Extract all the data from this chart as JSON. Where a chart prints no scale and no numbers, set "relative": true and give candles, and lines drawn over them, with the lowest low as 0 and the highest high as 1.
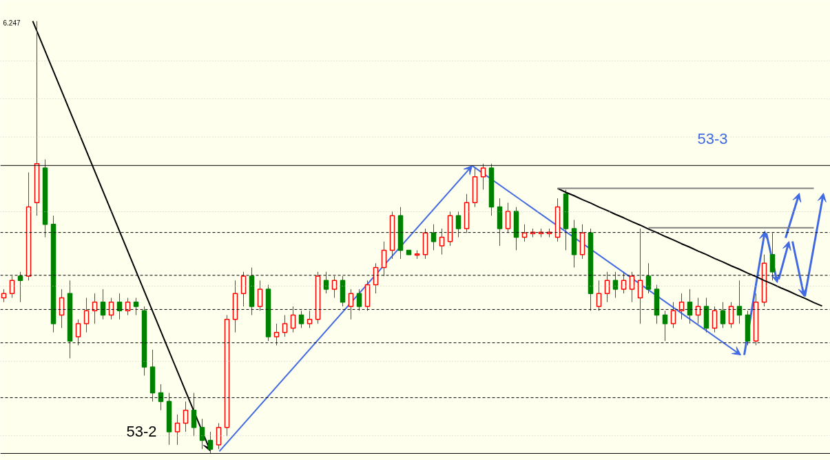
{
  "chart_data": {
    "type": "candlestick",
    "relative": true,
    "categories": [
      null,
      null,
      null,
      null,
      null,
      null,
      null,
      null,
      null,
      null,
      null,
      null,
      null,
      null,
      null,
      null,
      null,
      null,
      null,
      null,
      null,
      null,
      null,
      null,
      null,
      null,
      null,
      null,
      null,
      null,
      null,
      null,
      null,
      null,
      null,
      null,
      null,
      null,
      null,
      null,
      null,
      null,
      null,
      null,
      null,
      null,
      null,
      null,
      null,
      null,
      null,
      null,
      null,
      null,
      null,
      null,
      null,
      null,
      null,
      null,
      null,
      null,
      null,
      null,
      null,
      null,
      null,
      null,
      null,
      null,
      null,
      null,
      null,
      null,
      null,
      null,
      null,
      null,
      null,
      null,
      null,
      null,
      null,
      null,
      null,
      null,
      null,
      null,
      null,
      null,
      null,
      null,
      null,
      null,
      null,
      null,
      null,
      null,
      null,
      null
    ],
    "ohlc": [
      [
        0.36,
        0.38,
        0.35,
        0.37
      ],
      [
        0.37,
        0.41,
        0.36,
        0.4
      ],
      [
        0.41,
        0.42,
        0.35,
        0.4
      ],
      [
        0.41,
        0.65,
        0.4,
        0.57
      ],
      [
        0.58,
        1.0,
        0.55,
        0.67
      ],
      [
        0.66,
        0.68,
        0.5,
        0.53
      ],
      [
        0.53,
        0.55,
        0.28,
        0.3
      ],
      [
        0.32,
        0.38,
        0.29,
        0.36
      ],
      [
        0.37,
        0.4,
        0.22,
        0.26
      ],
      [
        0.27,
        0.31,
        0.25,
        0.3
      ],
      [
        0.3,
        0.36,
        0.28,
        0.33
      ],
      [
        0.33,
        0.37,
        0.3,
        0.35
      ],
      [
        0.35,
        0.38,
        0.31,
        0.32
      ],
      [
        0.32,
        0.36,
        0.31,
        0.35
      ],
      [
        0.35,
        0.37,
        0.31,
        0.33
      ],
      [
        0.33,
        0.36,
        0.32,
        0.35
      ],
      [
        0.35,
        0.36,
        0.32,
        0.34
      ],
      [
        0.33,
        0.34,
        0.18,
        0.2
      ],
      [
        0.2,
        0.24,
        0.12,
        0.14
      ],
      [
        0.14,
        0.16,
        0.1,
        0.12
      ],
      [
        0.12,
        0.14,
        0.02,
        0.05
      ],
      [
        0.05,
        0.09,
        0.02,
        0.07
      ],
      [
        0.07,
        0.12,
        0.05,
        0.1
      ],
      [
        0.1,
        0.14,
        0.04,
        0.06
      ],
      [
        0.06,
        0.08,
        0.01,
        0.03
      ],
      [
        0.03,
        0.05,
        0.0,
        0.01
      ],
      [
        0.02,
        0.07,
        0.01,
        0.06
      ],
      [
        0.06,
        0.32,
        0.04,
        0.31
      ],
      [
        0.31,
        0.4,
        0.28,
        0.37
      ],
      [
        0.37,
        0.42,
        0.34,
        0.41
      ],
      [
        0.41,
        0.43,
        0.32,
        0.34
      ],
      [
        0.34,
        0.4,
        0.33,
        0.38
      ],
      [
        0.38,
        0.39,
        0.26,
        0.27
      ],
      [
        0.27,
        0.3,
        0.25,
        0.28
      ],
      [
        0.28,
        0.32,
        0.27,
        0.3
      ],
      [
        0.29,
        0.34,
        0.28,
        0.32
      ],
      [
        0.32,
        0.33,
        0.29,
        0.3
      ],
      [
        0.3,
        0.33,
        0.29,
        0.31
      ],
      [
        0.31,
        0.42,
        0.3,
        0.41
      ],
      [
        0.4,
        0.42,
        0.37,
        0.38
      ],
      [
        0.38,
        0.41,
        0.36,
        0.4
      ],
      [
        0.4,
        0.41,
        0.34,
        0.35
      ],
      [
        0.34,
        0.38,
        0.31,
        0.37
      ],
      [
        0.37,
        0.38,
        0.33,
        0.34
      ],
      [
        0.34,
        0.4,
        0.33,
        0.39
      ],
      [
        0.39,
        0.44,
        0.37,
        0.43
      ],
      [
        0.43,
        0.49,
        0.41,
        0.47
      ],
      [
        0.47,
        0.56,
        0.45,
        0.55
      ],
      [
        0.55,
        0.57,
        0.45,
        0.47
      ],
      [
        0.47,
        0.47,
        0.46,
        0.46
      ],
      [
        0.46,
        0.47,
        0.45,
        0.46
      ],
      [
        0.46,
        0.52,
        0.45,
        0.51
      ],
      [
        0.51,
        0.53,
        0.47,
        0.49
      ],
      [
        0.48,
        0.52,
        0.46,
        0.5
      ],
      [
        0.49,
        0.56,
        0.48,
        0.55
      ],
      [
        0.55,
        0.56,
        0.5,
        0.52
      ],
      [
        0.52,
        0.6,
        0.51,
        0.58
      ],
      [
        0.58,
        0.66,
        0.57,
        0.64
      ],
      [
        0.64,
        0.67,
        0.61,
        0.66
      ],
      [
        0.66,
        0.67,
        0.55,
        0.57
      ],
      [
        0.57,
        0.59,
        0.48,
        0.52
      ],
      [
        0.52,
        0.58,
        0.51,
        0.56
      ],
      [
        0.56,
        0.57,
        0.47,
        0.5
      ],
      [
        0.5,
        0.53,
        0.49,
        0.51
      ],
      [
        0.51,
        0.52,
        0.5,
        0.51
      ],
      [
        0.51,
        0.52,
        0.5,
        0.51
      ],
      [
        0.51,
        0.52,
        0.5,
        0.51
      ],
      [
        0.5,
        0.59,
        0.49,
        0.57
      ],
      [
        0.6,
        0.61,
        0.47,
        0.52
      ],
      [
        0.52,
        0.54,
        0.43,
        0.46
      ],
      [
        0.46,
        0.53,
        0.45,
        0.51
      ],
      [
        0.51,
        0.52,
        0.33,
        0.37
      ],
      [
        0.34,
        0.4,
        0.33,
        0.37
      ],
      [
        0.37,
        0.42,
        0.35,
        0.4
      ],
      [
        0.4,
        0.42,
        0.36,
        0.38
      ],
      [
        0.38,
        0.42,
        0.37,
        0.4
      ],
      [
        0.38,
        0.42,
        0.35,
        0.41
      ],
      [
        0.36,
        0.52,
        0.3,
        0.4
      ],
      [
        0.41,
        0.44,
        0.37,
        0.38
      ],
      [
        0.38,
        0.39,
        0.3,
        0.32
      ],
      [
        0.32,
        0.33,
        0.26,
        0.3
      ],
      [
        0.3,
        0.35,
        0.29,
        0.33
      ],
      [
        0.33,
        0.37,
        0.31,
        0.35
      ],
      [
        0.35,
        0.38,
        0.3,
        0.32
      ],
      [
        0.32,
        0.36,
        0.3,
        0.34
      ],
      [
        0.34,
        0.36,
        0.28,
        0.29
      ],
      [
        0.29,
        0.34,
        0.28,
        0.33
      ],
      [
        0.33,
        0.35,
        0.29,
        0.3
      ],
      [
        0.3,
        0.35,
        0.29,
        0.34
      ],
      [
        0.34,
        0.4,
        0.3,
        0.32
      ],
      [
        0.32,
        0.33,
        0.25,
        0.26
      ],
      [
        0.26,
        0.37,
        0.25,
        0.35
      ],
      [
        0.35,
        0.46,
        0.34,
        0.44
      ],
      [
        0.46,
        0.51,
        0.4,
        0.42
      ],
      null,
      null,
      null,
      null,
      null,
      null
    ],
    "series": [
      {
        "type": "line",
        "color": "#000000",
        "values": [
          null,
          null,
          null,
          null,
          null,
          null,
          null,
          null,
          null,
          null,
          null,
          null,
          null,
          null,
          null,
          null,
          null,
          null,
          null,
          null,
          null,
          null,
          null,
          null,
          null,
          null,
          null,
          null,
          null,
          null,
          null,
          null,
          null,
          null,
          null,
          null,
          null,
          null,
          null,
          null,
          null,
          null,
          null,
          null,
          null,
          null,
          null,
          null,
          null,
          null,
          null,
          null,
          null,
          null,
          null,
          null,
          null,
          null,
          null,
          null,
          null,
          null,
          null,
          null,
          null,
          null,
          null,
          0.613,
          0.604,
          0.596,
          0.587,
          0.579,
          0.57,
          0.562,
          0.553,
          0.545,
          0.536,
          0.528,
          0.519,
          0.511,
          0.502,
          0.494,
          0.485,
          0.477,
          0.468,
          0.46,
          0.451,
          0.443,
          0.434,
          0.426,
          0.417,
          0.409,
          0.4,
          0.392,
          0.383,
          0.375,
          0.366,
          0.358,
          0.349,
          0.341
        ]
      },
      {
        "type": "line",
        "color": "#808080",
        "values": [
          null,
          null,
          null,
          null,
          null,
          null,
          null,
          null,
          null,
          null,
          null,
          null,
          null,
          null,
          null,
          null,
          null,
          null,
          null,
          null,
          null,
          null,
          null,
          null,
          null,
          null,
          null,
          null,
          null,
          null,
          null,
          null,
          null,
          null,
          null,
          null,
          null,
          null,
          null,
          null,
          null,
          null,
          null,
          null,
          null,
          null,
          null,
          null,
          null,
          null,
          null,
          null,
          null,
          null,
          null,
          null,
          null,
          null,
          null,
          null,
          null,
          null,
          null,
          null,
          null,
          null,
          null,
          0.613,
          0.613,
          0.613,
          0.613,
          0.613,
          0.613,
          0.613,
          0.613,
          0.613,
          0.613,
          0.613,
          0.613,
          0.613,
          0.613,
          0.613,
          0.613,
          0.613,
          0.613,
          0.613,
          0.613,
          0.613,
          0.613,
          0.613,
          0.613,
          0.613,
          0.613,
          0.613,
          0.613,
          0.613,
          0.613,
          0.613,
          0.613,
          null
        ]
      },
      {
        "type": "line",
        "color": "#808080",
        "values": [
          null,
          null,
          null,
          null,
          null,
          null,
          null,
          null,
          null,
          null,
          null,
          null,
          null,
          null,
          null,
          null,
          null,
          null,
          null,
          null,
          null,
          null,
          null,
          null,
          null,
          null,
          null,
          null,
          null,
          null,
          null,
          null,
          null,
          null,
          null,
          null,
          null,
          null,
          null,
          null,
          null,
          null,
          null,
          null,
          null,
          null,
          null,
          null,
          null,
          null,
          null,
          null,
          null,
          null,
          null,
          null,
          null,
          null,
          null,
          null,
          null,
          null,
          null,
          null,
          null,
          null,
          null,
          null,
          null,
          null,
          null,
          null,
          null,
          null,
          null,
          null,
          null,
          null,
          0.522,
          0.522,
          0.522,
          0.522,
          0.522,
          0.522,
          0.522,
          0.522,
          0.522,
          0.522,
          0.522,
          0.522,
          0.522,
          0.522,
          0.522,
          0.522,
          0.522,
          0.522,
          0.522,
          0.522,
          0.522,
          null
        ]
      }
    ],
    "ref_lines": [
      {
        "axis": "y",
        "value": 0.666,
        "color": "#000000",
        "line_style": "solid"
      },
      {
        "axis": "y",
        "value": 0,
        "color": "#000000",
        "line_style": "solid"
      },
      {
        "axis": "y",
        "value": 0.511,
        "color": "#000000",
        "line_style": "dashed"
      },
      {
        "axis": "y",
        "value": 0.412,
        "color": "#000000",
        "line_style": "dashed"
      },
      {
        "axis": "y",
        "value": 0.333,
        "color": "#000000",
        "line_style": "dashed"
      },
      {
        "axis": "y",
        "value": 0.256,
        "color": "#000000",
        "line_style": "dashed"
      },
      {
        "axis": "y",
        "value": 0.129,
        "color": "#000000",
        "line_style": "dashed"
      },
      {
        "axis": "y",
        "value": 0.908,
        "color": "#c0c0c0",
        "line_style": "dotted"
      },
      {
        "axis": "y",
        "value": 0.82,
        "color": "#c0c0c0",
        "line_style": "dotted"
      },
      {
        "axis": "y",
        "value": 0.732,
        "color": "#c0c0c0",
        "line_style": "dotted"
      },
      {
        "axis": "y",
        "value": 0.559,
        "color": "#c0c0c0",
        "line_style": "dotted"
      },
      {
        "axis": "y",
        "value": 0.387,
        "color": "#c0c0c0",
        "line_style": "dotted"
      },
      {
        "axis": "y",
        "value": 0.213,
        "color": "#c0c0c0",
        "line_style": "dotted"
      },
      {
        "axis": "y",
        "value": 0.041,
        "color": "#c0c0c0",
        "line_style": "dotted"
      }
    ],
    "annotations": [
      "6.247",
      "53-2",
      "53-3"
    ]
  }
}
